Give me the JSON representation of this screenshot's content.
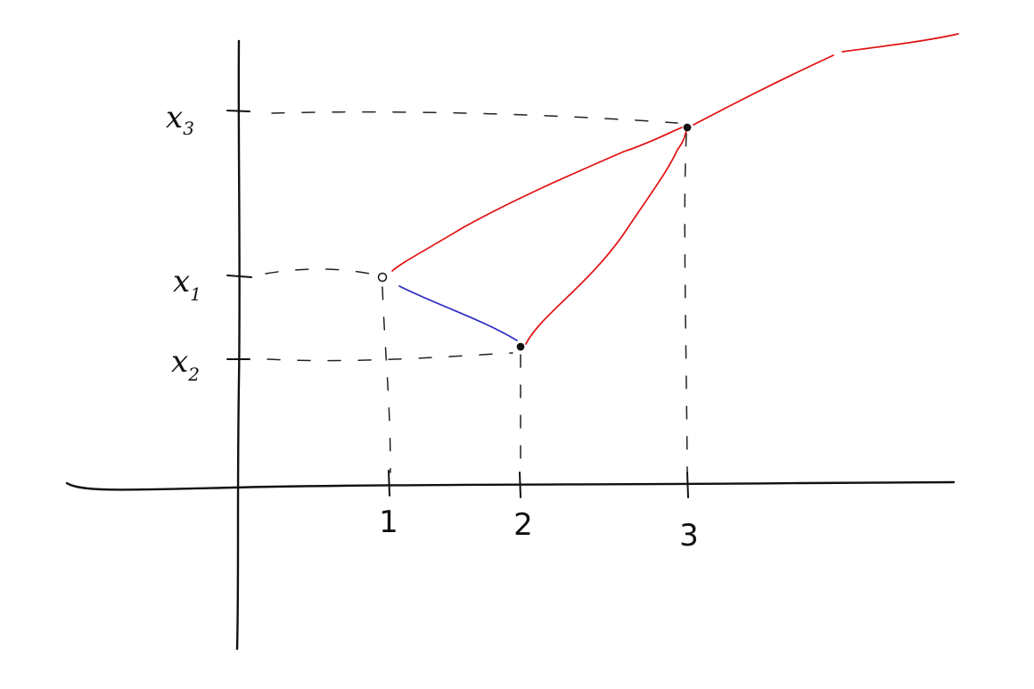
{
  "colors": {
    "stroke": "#111111",
    "red_path": "#e01010",
    "blue_path": "#2a2ac0"
  },
  "x_axis": {
    "ticks": [
      "1",
      "2",
      "3"
    ]
  },
  "y_axis": {
    "labels": [
      {
        "main": "x",
        "sub": "3"
      },
      {
        "main": "x",
        "sub": "1"
      },
      {
        "main": "x",
        "sub": "2"
      }
    ]
  },
  "points": [
    {
      "id": "p1",
      "x": 1,
      "y_label": "x1"
    },
    {
      "id": "p2",
      "x": 2,
      "y_label": "x2"
    },
    {
      "id": "p3",
      "x": 3,
      "y_label": "x3"
    }
  ],
  "connections": [
    {
      "from": "p1",
      "to": "p2",
      "color": "#2a2ac0"
    },
    {
      "from": "p2",
      "to": "p3",
      "color": "#e01010"
    },
    {
      "from": "p1",
      "to": "p3",
      "color": "#e01010"
    },
    {
      "from": "p3",
      "to": "continuation",
      "color": "#e01010"
    }
  ]
}
